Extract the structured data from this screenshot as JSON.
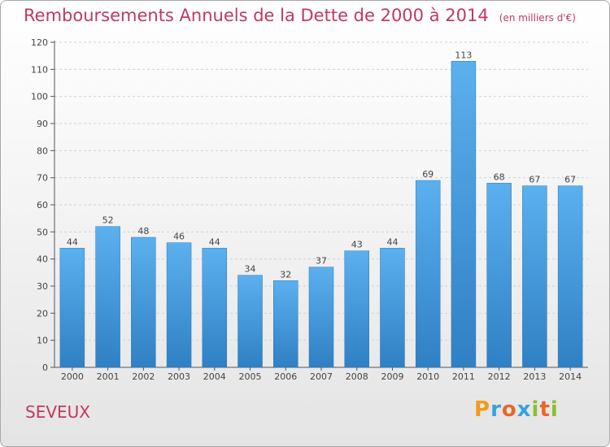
{
  "chart_data": {
    "type": "bar",
    "title": "Remboursements Annuels de la Dette de 2000 à 2014",
    "subtitle": "(en milliers d'€)",
    "categories": [
      "2000",
      "2001",
      "2002",
      "2003",
      "2004",
      "2005",
      "2006",
      "2007",
      "2008",
      "2009",
      "2010",
      "2011",
      "2012",
      "2013",
      "2014"
    ],
    "values": [
      44,
      52,
      48,
      46,
      44,
      34,
      32,
      37,
      43,
      44,
      69,
      113,
      68,
      67,
      67
    ],
    "ylim": [
      0,
      120
    ],
    "yticks": [
      0,
      10,
      20,
      30,
      40,
      50,
      60,
      70,
      80,
      90,
      100,
      110,
      120
    ],
    "grid": true,
    "bar_color": "#4da4e6",
    "xlabel": "",
    "ylabel": ""
  },
  "commune": "SEVEUX",
  "logo": {
    "letters": [
      "P",
      "r",
      "o",
      "x",
      "i",
      "t",
      "i"
    ],
    "colors": [
      "#f39a1e",
      "#3aa0db",
      "#e8672b",
      "#3aa0db",
      "#8cbf2e",
      "#e8672b",
      "#8cbf2e"
    ]
  }
}
